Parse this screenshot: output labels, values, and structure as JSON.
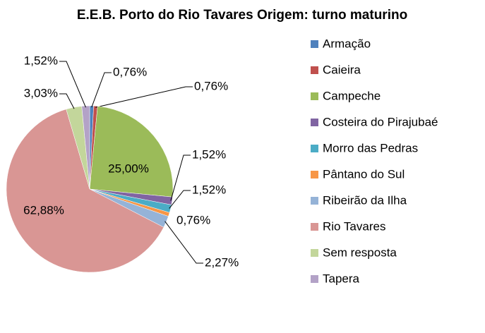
{
  "chart_data": {
    "type": "pie",
    "title": "E.E.B. Porto do Rio Tavares Origem: turno maturino",
    "categories": [
      "Armação",
      "Caieira",
      "Campeche",
      "Costeira do Pirajubaé",
      "Morro das Pedras",
      "Pântano do Sul",
      "Ribeirão da Ilha",
      "Rio Tavares",
      "Sem resposta",
      "Tapera"
    ],
    "values": [
      0.76,
      0.76,
      25.0,
      1.52,
      1.52,
      0.76,
      2.27,
      62.88,
      3.03,
      1.52
    ],
    "value_labels": [
      "0,76%",
      "0,76%",
      "25,00%",
      "1,52%",
      "1,52%",
      "0,76%",
      "2,27%",
      "62,88%",
      "3,03%",
      "1,52%"
    ],
    "colors": [
      "#4F81BD",
      "#C0504D",
      "#9BBB59",
      "#8064A2",
      "#4BACC6",
      "#F79646",
      "#95B3D7",
      "#D99694",
      "#C3D69B",
      "#B3A2C7"
    ],
    "legend": "right"
  }
}
